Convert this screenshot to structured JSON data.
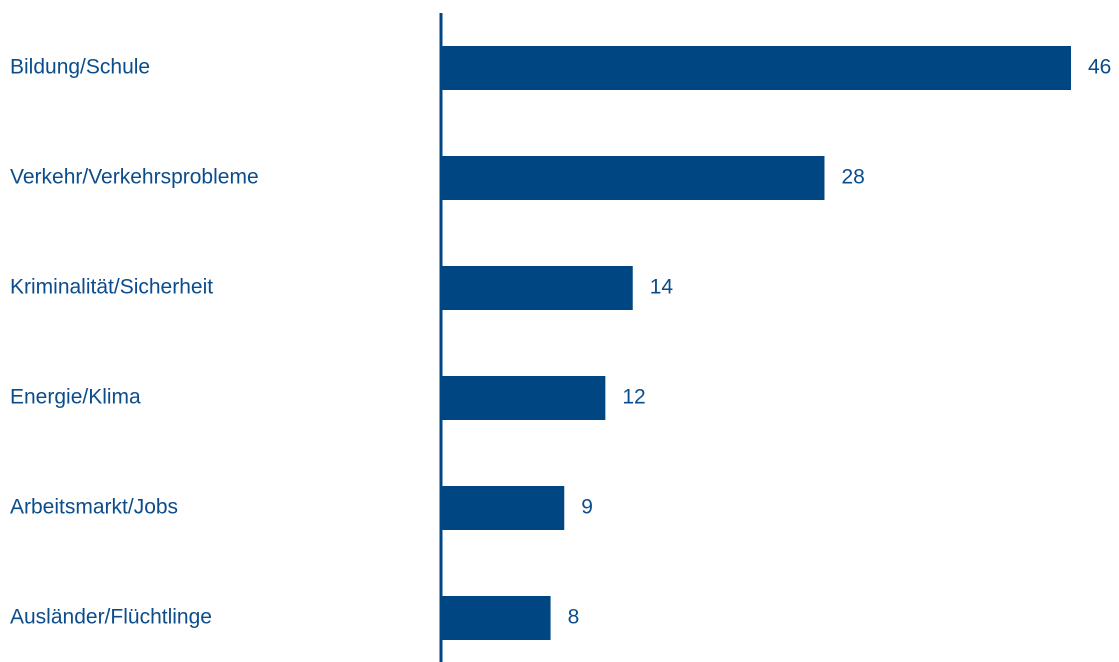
{
  "chart_data": {
    "type": "bar",
    "orientation": "horizontal",
    "categories": [
      "Bildung/Schule",
      "Verkehr/Verkehrsprobleme",
      "Kriminalität/Sicherheit",
      "Energie/Klima",
      "Arbeitsmarkt/Jobs",
      "Ausländer/Flüchtlinge"
    ],
    "values": [
      46,
      28,
      14,
      12,
      9,
      8
    ],
    "data_labels": [
      "46",
      "28",
      "14",
      "12",
      "9",
      "8"
    ],
    "title": "",
    "xlabel": "",
    "ylabel": "",
    "xlim": [
      0,
      46
    ],
    "grid": false,
    "legend": "none",
    "colors": {
      "bar": "#004682",
      "axis": "#004682",
      "text": "#0b4d8c"
    }
  }
}
